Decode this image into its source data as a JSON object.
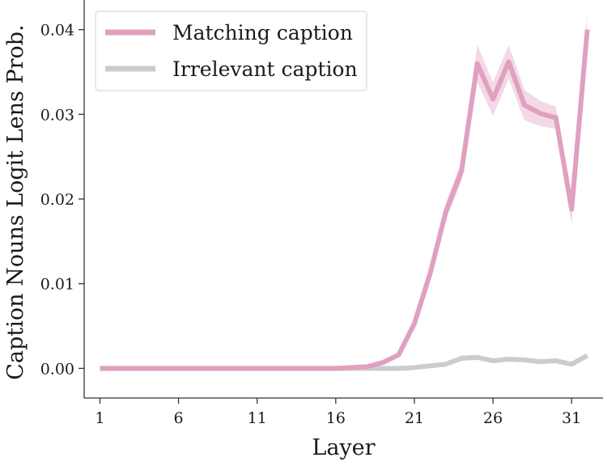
{
  "chart_data": {
    "type": "line",
    "title": "",
    "xlabel": "Layer",
    "ylabel": "Caption Nouns Logit Lens Prob.",
    "xlim": [
      0,
      33
    ],
    "ylim": [
      -0.0035,
      0.0435
    ],
    "x_ticks": [
      1,
      6,
      11,
      16,
      21,
      26,
      31
    ],
    "y_ticks": [
      0.0,
      0.01,
      0.02,
      0.03,
      0.04
    ],
    "y_tick_labels": [
      "0.00",
      "0.01",
      "0.02",
      "0.03",
      "0.04"
    ],
    "grid": false,
    "legend_position": "top-left",
    "x": [
      1,
      2,
      3,
      4,
      5,
      6,
      7,
      8,
      9,
      10,
      11,
      12,
      13,
      14,
      15,
      16,
      17,
      18,
      19,
      20,
      21,
      22,
      23,
      24,
      25,
      26,
      27,
      28,
      29,
      30,
      31,
      32
    ],
    "series": [
      {
        "name": "Matching caption",
        "color": "#e0a0c0",
        "values": [
          0.0,
          0.0,
          0.0,
          0.0,
          0.0,
          0.0,
          0.0,
          0.0,
          0.0,
          0.0,
          0.0,
          0.0,
          0.0,
          0.0,
          0.0,
          0.0,
          0.0001,
          0.0002,
          0.0007,
          0.0016,
          0.0053,
          0.0112,
          0.0185,
          0.0233,
          0.036,
          0.0318,
          0.0362,
          0.0311,
          0.0301,
          0.0296,
          0.0188,
          0.04
        ],
        "band": [
          0.0,
          0.0,
          0.0,
          0.0,
          0.0,
          0.0,
          0.0,
          0.0,
          0.0,
          0.0,
          0.0,
          0.0,
          0.0,
          0.0,
          0.0,
          0.0,
          0.0,
          0.0,
          0.0001,
          0.0002,
          0.0004,
          0.0006,
          0.001,
          0.0012,
          0.0022,
          0.002,
          0.002,
          0.0018,
          0.0015,
          0.0013,
          0.0018,
          0.0018
        ]
      },
      {
        "name": "Irrelevant caption",
        "color": "#cccccc",
        "values": [
          0.0,
          0.0,
          0.0,
          0.0,
          0.0,
          0.0,
          0.0,
          0.0,
          0.0,
          0.0,
          0.0,
          0.0,
          0.0,
          0.0,
          0.0,
          0.0,
          0.0,
          0.0,
          0.0,
          0.0,
          0.0001,
          0.0003,
          0.0005,
          0.0012,
          0.0013,
          0.0009,
          0.0011,
          0.001,
          0.0008,
          0.0009,
          0.0005,
          0.0015
        ],
        "band": [
          0.0,
          0.0,
          0.0,
          0.0,
          0.0,
          0.0,
          0.0,
          0.0,
          0.0,
          0.0,
          0.0,
          0.0,
          0.0,
          0.0,
          0.0,
          0.0,
          0.0,
          0.0,
          0.0,
          0.0,
          0.0,
          0.0001,
          0.0001,
          0.0003,
          0.0003,
          0.0002,
          0.0002,
          0.0002,
          0.0002,
          0.0002,
          0.0001,
          0.0002
        ]
      }
    ]
  }
}
